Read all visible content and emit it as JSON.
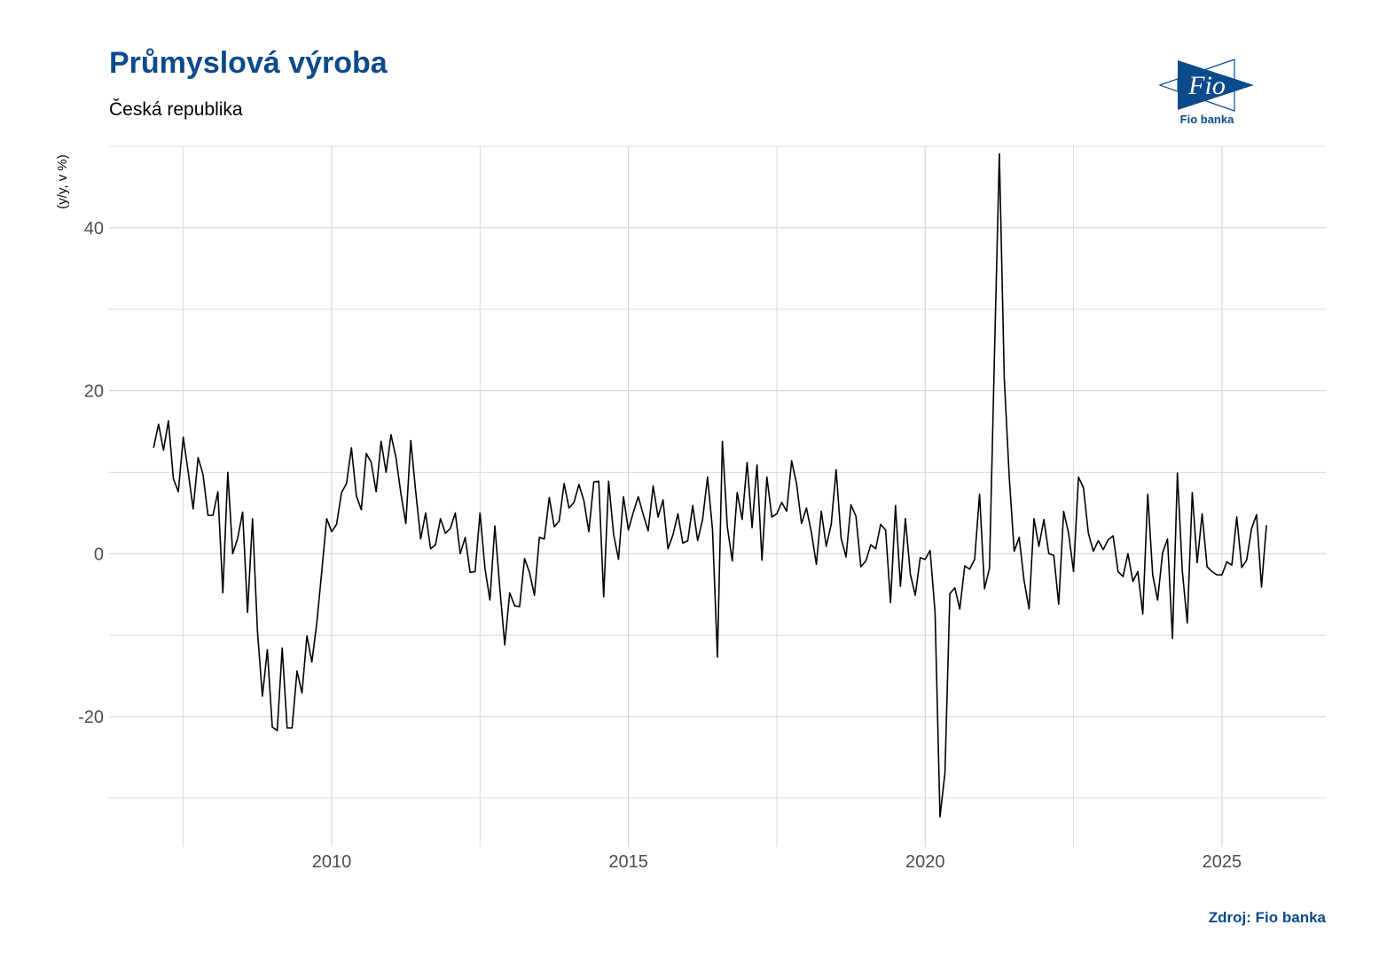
{
  "header": {
    "title": "Průmyslová výroba",
    "subtitle": "Česká republika"
  },
  "logo": {
    "mark_text": "Fio",
    "caption": "Fio banka",
    "color": "#0b4a8b"
  },
  "source": "Zdroj: Fio banka",
  "colors": {
    "line": "#000000",
    "grid": "#d4d4d4",
    "brand": "#0b4a8b"
  },
  "chart_data": {
    "type": "line",
    "title": "Průmyslová výroba",
    "subtitle": "Česká republika",
    "xlabel": "",
    "ylabel": "(y/y, v %)",
    "xlim": [
      2006.25,
      2026.75
    ],
    "ylim": [
      -36,
      50
    ],
    "x_ticks": [
      2010,
      2015,
      2020,
      2025
    ],
    "y_ticks": [
      -20,
      0,
      20,
      40
    ],
    "grid": true,
    "legend": "none",
    "series": [
      {
        "start": 2007.0,
        "step": 0.0833333,
        "values": [
          13.0,
          15.9,
          12.7,
          16.3,
          9.2,
          7.6,
          14.3,
          10.0,
          5.5,
          11.8,
          9.7,
          4.7,
          4.7,
          7.6,
          -4.8,
          10.0,
          0.0,
          1.9,
          5.1,
          -7.2,
          4.3,
          -9.5,
          -17.5,
          -11.8,
          -21.3,
          -21.7,
          -11.6,
          -21.4,
          -21.4,
          -14.4,
          -17.1,
          -10.1,
          -13.3,
          -8.5,
          -2.2,
          4.3,
          2.7,
          3.6,
          7.5,
          8.6,
          13.0,
          7.1,
          5.4,
          12.3,
          11.2,
          7.6,
          13.8,
          10.0,
          14.6,
          11.8,
          7.4,
          3.7,
          13.9,
          7.6,
          1.8,
          5.0,
          0.6,
          1.1,
          4.3,
          2.5,
          3.1,
          5.0,
          0.0,
          2.0,
          -2.3,
          -2.2,
          5.0,
          -1.8,
          -5.7,
          3.4,
          -4.2,
          -11.2,
          -4.8,
          -6.4,
          -6.5,
          -0.6,
          -2.3,
          -5.1,
          2.0,
          1.8,
          6.9,
          3.3,
          4.0,
          8.6,
          5.6,
          6.3,
          8.5,
          6.5,
          2.7,
          8.8,
          8.9,
          -5.3,
          8.9,
          2.4,
          -0.7,
          7.0,
          2.9,
          5.1,
          7.0,
          4.8,
          2.8,
          8.3,
          4.5,
          6.6,
          0.6,
          2.3,
          4.9,
          1.3,
          1.6,
          5.9,
          1.6,
          4.2,
          9.4,
          3.0,
          -12.7,
          13.8,
          3.3,
          -0.9,
          7.5,
          4.2,
          11.2,
          3.2,
          10.9,
          -0.8,
          9.4,
          4.5,
          4.9,
          6.3,
          5.2,
          11.4,
          8.6,
          3.7,
          5.6,
          2.6,
          -1.3,
          5.2,
          0.9,
          3.6,
          10.3,
          1.9,
          -0.4,
          6.0,
          4.6,
          -1.6,
          -0.9,
          1.1,
          0.6,
          3.6,
          2.9,
          -6.0,
          5.9,
          -4.0,
          4.3,
          -2.5,
          -5.1,
          -0.5,
          -0.7,
          0.4,
          -7.2,
          -32.3,
          -26.9,
          -4.9,
          -4.2,
          -6.8,
          -1.5,
          -1.9,
          -0.7,
          7.3,
          -4.3,
          -1.8,
          24.0,
          49.1,
          21.4,
          9.4,
          0.3,
          2.0,
          -3.3,
          -6.8,
          4.3,
          0.9,
          4.2,
          0.0,
          -0.2,
          -6.2,
          5.2,
          2.5,
          -2.2,
          9.4,
          8.1,
          2.5,
          0.3,
          1.6,
          0.5,
          1.7,
          2.2,
          -2.2,
          -2.8,
          0.0,
          -3.4,
          -2.2,
          -7.4,
          7.3,
          -2.6,
          -5.7,
          0.1,
          1.8,
          -10.4,
          9.9,
          -2.2,
          -8.5,
          7.5,
          -1.1,
          4.9,
          -1.6,
          -2.2,
          -2.6,
          -2.6,
          -1.0,
          -1.4,
          4.5,
          -1.7,
          -0.8,
          3.1,
          4.8,
          -4.1,
          3.5
        ]
      }
    ]
  }
}
